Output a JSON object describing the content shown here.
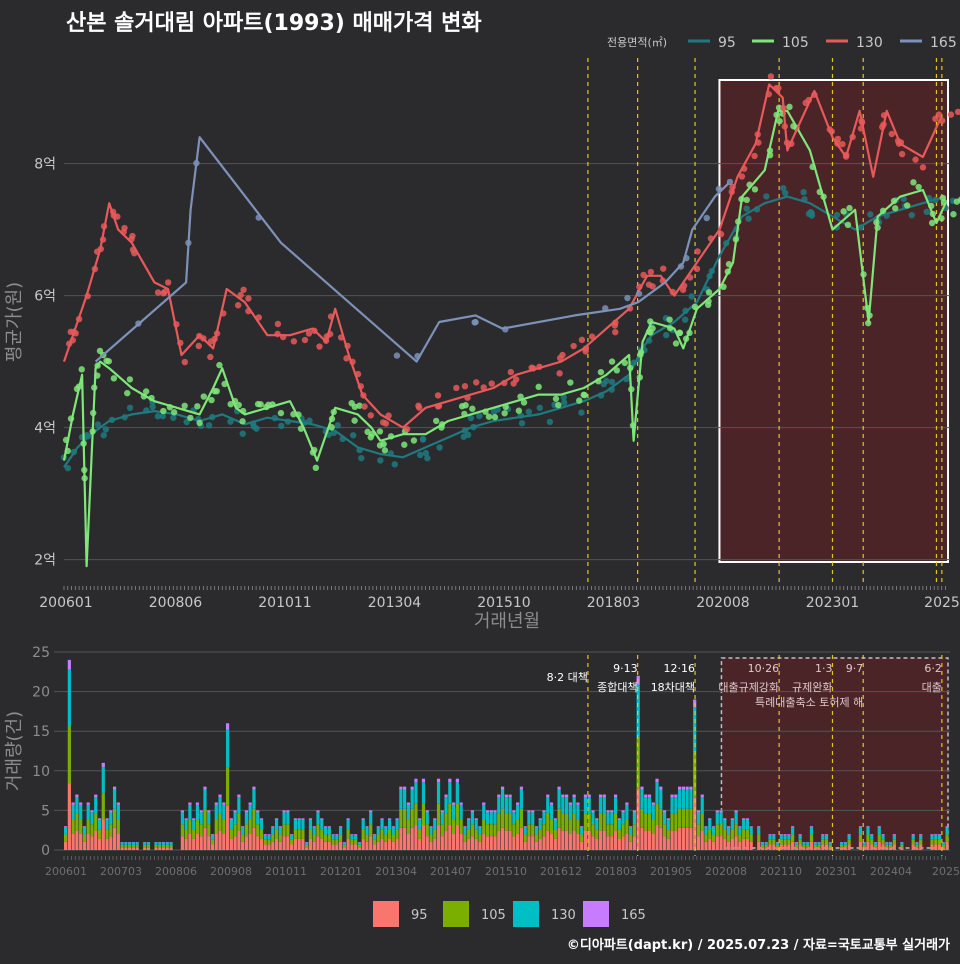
{
  "title": "산본 솔거대림 아파트(1993) 매매가격 변화",
  "footer": "©디아파트(dapt.kr) / 2025.07.23 / 자료=국토교통부 실거래가",
  "colors": {
    "bg": "#2b2b2d",
    "grid": "#555557",
    "text": "#c8c8c8",
    "axis_label": "#8c8c8c",
    "line_95": "#1f7a80",
    "line_105": "#7fe67a",
    "line_130": "#e8595a",
    "line_165": "#7d92b8",
    "bar_95": "#f8766d",
    "bar_105": "#7cae00",
    "bar_130": "#00bfc4",
    "bar_165": "#c77cff",
    "policy_line": "#e6c619",
    "highlight_fill": "#4a2426",
    "highlight_border": "#ffffff"
  },
  "chart_data": [
    {
      "type": "line",
      "title": "산본 솔거대림 아파트(1993) 매매가격 변화",
      "xlabel": "거래년월",
      "ylabel": "평균가(원)",
      "legend_title": "전용면적(㎡)",
      "legend_position": "top-right",
      "x_ticks": [
        "200601",
        "200806",
        "201011",
        "201304",
        "201510",
        "201803",
        "202008",
        "202301",
        "2025"
      ],
      "y_ticks": [
        2,
        4,
        6,
        8
      ],
      "y_tick_labels": [
        "2억",
        "4억",
        "6억",
        "8억"
      ],
      "y_unit": "억",
      "ylim": [
        1.6,
        9.6
      ],
      "xlim": [
        2006.0,
        2025.6
      ],
      "policy_dates": [
        2017.59,
        2018.69,
        2019.96,
        2021.82,
        2023.0,
        2023.68,
        2025.3,
        2025.42
      ],
      "highlight_range": [
        2020.5,
        2025.6
      ],
      "series": [
        {
          "name": "95",
          "points": [
            [
              2006.0,
              3.4
            ],
            [
              2006.3,
              3.7
            ],
            [
              2006.6,
              3.9
            ],
            [
              2007.0,
              4.1
            ],
            [
              2007.5,
              4.2
            ],
            [
              2008.0,
              4.25
            ],
            [
              2008.5,
              4.2
            ],
            [
              2009.0,
              4.1
            ],
            [
              2009.5,
              4.2
            ],
            [
              2010.0,
              4.05
            ],
            [
              2010.5,
              4.15
            ],
            [
              2011.0,
              4.1
            ],
            [
              2011.5,
              4.05
            ],
            [
              2012.0,
              3.95
            ],
            [
              2012.5,
              3.7
            ],
            [
              2013.0,
              3.6
            ],
            [
              2013.5,
              3.55
            ],
            [
              2014.0,
              3.7
            ],
            [
              2014.5,
              3.85
            ],
            [
              2015.0,
              4.0
            ],
            [
              2015.5,
              4.1
            ],
            [
              2016.0,
              4.15
            ],
            [
              2016.5,
              4.2
            ],
            [
              2017.0,
              4.3
            ],
            [
              2017.5,
              4.4
            ],
            [
              2018.0,
              4.55
            ],
            [
              2018.5,
              4.8
            ],
            [
              2018.8,
              5.2
            ],
            [
              2019.0,
              5.4
            ],
            [
              2019.5,
              5.6
            ],
            [
              2020.0,
              5.9
            ],
            [
              2020.5,
              6.6
            ],
            [
              2021.0,
              7.2
            ],
            [
              2021.5,
              7.4
            ],
            [
              2022.0,
              7.5
            ],
            [
              2022.5,
              7.4
            ],
            [
              2023.0,
              7.2
            ],
            [
              2023.5,
              7.0
            ],
            [
              2024.0,
              7.2
            ],
            [
              2024.5,
              7.3
            ],
            [
              2025.0,
              7.4
            ],
            [
              2025.5,
              7.5
            ]
          ]
        },
        {
          "name": "105",
          "points": [
            [
              2006.0,
              3.5
            ],
            [
              2006.2,
              4.2
            ],
            [
              2006.4,
              4.8
            ],
            [
              2006.5,
              1.9
            ],
            [
              2006.7,
              4.9
            ],
            [
              2006.8,
              5.0
            ],
            [
              2007.0,
              4.9
            ],
            [
              2007.5,
              4.6
            ],
            [
              2008.0,
              4.4
            ],
            [
              2008.5,
              4.3
            ],
            [
              2009.0,
              4.2
            ],
            [
              2009.3,
              4.6
            ],
            [
              2009.5,
              4.9
            ],
            [
              2009.8,
              4.3
            ],
            [
              2010.0,
              4.2
            ],
            [
              2010.5,
              4.3
            ],
            [
              2011.0,
              4.4
            ],
            [
              2011.3,
              4.0
            ],
            [
              2011.6,
              3.5
            ],
            [
              2012.0,
              4.3
            ],
            [
              2012.5,
              4.2
            ],
            [
              2012.8,
              4.0
            ],
            [
              2013.0,
              3.8
            ],
            [
              2013.5,
              3.9
            ],
            [
              2014.0,
              3.9
            ],
            [
              2014.5,
              4.1
            ],
            [
              2015.0,
              4.2
            ],
            [
              2015.5,
              4.3
            ],
            [
              2016.0,
              4.4
            ],
            [
              2016.5,
              4.5
            ],
            [
              2017.0,
              4.5
            ],
            [
              2017.5,
              4.6
            ],
            [
              2018.0,
              4.8
            ],
            [
              2018.5,
              5.1
            ],
            [
              2018.6,
              3.8
            ],
            [
              2018.8,
              5.3
            ],
            [
              2019.0,
              5.6
            ],
            [
              2019.5,
              5.5
            ],
            [
              2019.7,
              5.2
            ],
            [
              2020.0,
              5.8
            ],
            [
              2020.5,
              6.1
            ],
            [
              2020.8,
              6.5
            ],
            [
              2021.0,
              7.5
            ],
            [
              2021.5,
              7.9
            ],
            [
              2021.8,
              8.8
            ],
            [
              2022.0,
              8.8
            ],
            [
              2022.5,
              8.2
            ],
            [
              2023.0,
              7.0
            ],
            [
              2023.5,
              7.3
            ],
            [
              2023.8,
              5.6
            ],
            [
              2024.0,
              7.2
            ],
            [
              2024.5,
              7.5
            ],
            [
              2025.0,
              7.6
            ],
            [
              2025.3,
              7.1
            ],
            [
              2025.5,
              7.4
            ]
          ]
        },
        {
          "name": "130",
          "points": [
            [
              2006.0,
              5.0
            ],
            [
              2006.2,
              5.4
            ],
            [
              2006.5,
              6.0
            ],
            [
              2006.8,
              6.7
            ],
            [
              2007.0,
              7.4
            ],
            [
              2007.2,
              7.0
            ],
            [
              2007.5,
              6.8
            ],
            [
              2008.0,
              6.2
            ],
            [
              2008.3,
              6.1
            ],
            [
              2008.6,
              5.1
            ],
            [
              2009.0,
              5.4
            ],
            [
              2009.3,
              5.2
            ],
            [
              2009.6,
              6.1
            ],
            [
              2010.0,
              5.9
            ],
            [
              2010.5,
              5.4
            ],
            [
              2011.0,
              5.4
            ],
            [
              2011.5,
              5.5
            ],
            [
              2011.8,
              5.3
            ],
            [
              2012.0,
              5.8
            ],
            [
              2012.3,
              5.1
            ],
            [
              2012.6,
              4.5
            ],
            [
              2013.0,
              4.2
            ],
            [
              2013.5,
              4.0
            ],
            [
              2014.0,
              4.3
            ],
            [
              2014.5,
              4.4
            ],
            [
              2015.0,
              4.5
            ],
            [
              2015.5,
              4.6
            ],
            [
              2016.0,
              4.8
            ],
            [
              2016.5,
              4.9
            ],
            [
              2017.0,
              5.0
            ],
            [
              2017.5,
              5.2
            ],
            [
              2018.0,
              5.5
            ],
            [
              2018.5,
              5.8
            ],
            [
              2018.9,
              6.3
            ],
            [
              2019.2,
              6.3
            ],
            [
              2019.5,
              6.0
            ],
            [
              2020.0,
              6.5
            ],
            [
              2020.5,
              7.0
            ],
            [
              2020.9,
              7.8
            ],
            [
              2021.3,
              8.3
            ],
            [
              2021.6,
              9.2
            ],
            [
              2021.9,
              9.0
            ],
            [
              2022.0,
              8.2
            ],
            [
              2022.6,
              9.1
            ],
            [
              2023.0,
              8.4
            ],
            [
              2023.3,
              8.1
            ],
            [
              2023.6,
              8.8
            ],
            [
              2023.9,
              7.8
            ],
            [
              2024.2,
              8.8
            ],
            [
              2024.5,
              8.3
            ],
            [
              2025.0,
              8.1
            ],
            [
              2025.4,
              8.7
            ]
          ]
        },
        {
          "name": "165",
          "points": [
            [
              2006.7,
              5.0
            ],
            [
              2008.7,
              6.2
            ],
            [
              2008.8,
              7.3
            ],
            [
              2009.0,
              8.4
            ],
            [
              2010.8,
              6.8
            ],
            [
              2013.8,
              5.0
            ],
            [
              2014.3,
              5.6
            ],
            [
              2015.1,
              5.7
            ],
            [
              2015.7,
              5.5
            ],
            [
              2017.3,
              5.7
            ],
            [
              2018.3,
              5.8
            ],
            [
              2018.7,
              5.9
            ],
            [
              2019.3,
              6.2
            ],
            [
              2019.7,
              6.5
            ],
            [
              2019.9,
              7.0
            ],
            [
              2020.4,
              7.5
            ],
            [
              2020.7,
              7.7
            ]
          ]
        }
      ]
    },
    {
      "type": "bar",
      "stacked": true,
      "ylabel": "거래량(건)",
      "x_ticks": [
        "200601",
        "200703",
        "200806",
        "200908",
        "201011",
        "201201",
        "201304",
        "201407",
        "201510",
        "201612",
        "201803",
        "201905",
        "202008",
        "202110",
        "202301",
        "202404",
        "2025"
      ],
      "y_ticks": [
        0,
        5,
        10,
        15,
        20,
        25
      ],
      "ylim": [
        0,
        25
      ],
      "legend_position": "bottom",
      "legend": [
        "95",
        "105",
        "130",
        "165"
      ],
      "events": [
        {
          "date": 2017.59,
          "label": "8·2 대책"
        },
        {
          "date": 2018.69,
          "label": "9·13",
          "label2": "종합대책"
        },
        {
          "date": 2019.96,
          "label": "12·16",
          "label2": "18차대책"
        },
        {
          "date": 2021.82,
          "label": "10·26",
          "label2": "대출규제강화"
        },
        {
          "date": 2023.0,
          "label": "1·3",
          "label2": "규제완화"
        },
        {
          "date": 2023.68,
          "label": "9·7",
          "label2": "특례대출축소 토허제 해"
        },
        {
          "date": 2025.42,
          "label": "6·2",
          "label2": "대출"
        }
      ],
      "highlight_range": [
        2020.5,
        2025.6
      ],
      "peaks": [
        {
          "date": 2006.1,
          "total": 24
        },
        {
          "date": 2006.8,
          "total": 11
        },
        {
          "date": 2009.6,
          "total": 16
        },
        {
          "date": 2018.69,
          "total": 22
        },
        {
          "date": 2019.9,
          "total": 19
        }
      ]
    }
  ]
}
